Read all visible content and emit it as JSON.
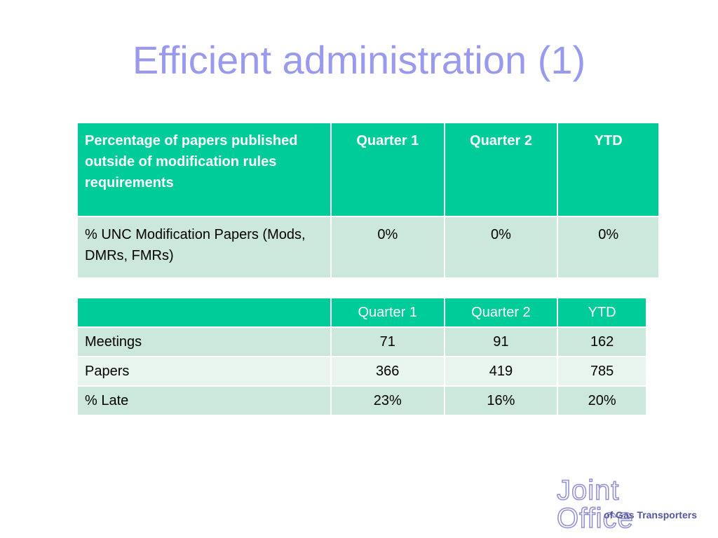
{
  "slide": {
    "title": "Efficient administration (1)"
  },
  "table1": {
    "headers": [
      "Percentage of papers published outside of modification rules requirements",
      "Quarter 1",
      "Quarter 2",
      "YTD"
    ],
    "rows": [
      [
        "% UNC Modification Papers (Mods, DMRs, FMRs)",
        "0%",
        "0%",
        "0%"
      ]
    ]
  },
  "table2": {
    "headers": [
      "",
      "Quarter 1",
      "Quarter 2",
      "YTD"
    ],
    "rows": [
      [
        "Meetings",
        "71",
        "91",
        "162"
      ],
      [
        "Papers",
        "366",
        "419",
        "785"
      ],
      [
        "% Late",
        "23%",
        "16%",
        "20%"
      ]
    ]
  },
  "logo": {
    "name": "Joint Office",
    "tagline": "of Gas Transporters"
  },
  "colors": {
    "title": "#9999ee",
    "header": "#00cc99",
    "row_dark": "#cce8dc",
    "row_light": "#e8f4ee"
  }
}
